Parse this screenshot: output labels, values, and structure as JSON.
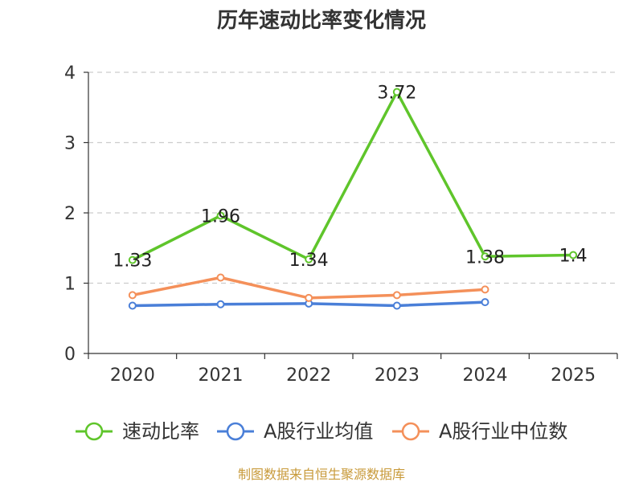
{
  "chart_data": {
    "type": "line",
    "title": "历年速动比率变化情况",
    "categories": [
      "2020",
      "2021",
      "2022",
      "2023",
      "2024",
      "2025"
    ],
    "ylim": [
      0,
      4
    ],
    "yticks": [
      "0",
      "1",
      "2",
      "3",
      "4"
    ],
    "grid": true,
    "legend_position": "bottom",
    "series": [
      {
        "name": "速动比率",
        "color": "#5fc52b",
        "values": [
          1.33,
          1.96,
          1.34,
          3.72,
          1.38,
          1.4
        ],
        "labels": [
          "1.33",
          "1.96",
          "1.34",
          "3.72",
          "1.38",
          "1.4"
        ]
      },
      {
        "name": "A股行业均值",
        "color": "#4a7fd8",
        "values": [
          0.68,
          0.7,
          0.71,
          0.68,
          0.73,
          null
        ]
      },
      {
        "name": "A股行业中位数",
        "color": "#f4905a",
        "values": [
          0.83,
          1.08,
          0.79,
          0.83,
          0.91,
          null
        ]
      }
    ],
    "source": "制图数据来自恒生聚源数据库"
  }
}
